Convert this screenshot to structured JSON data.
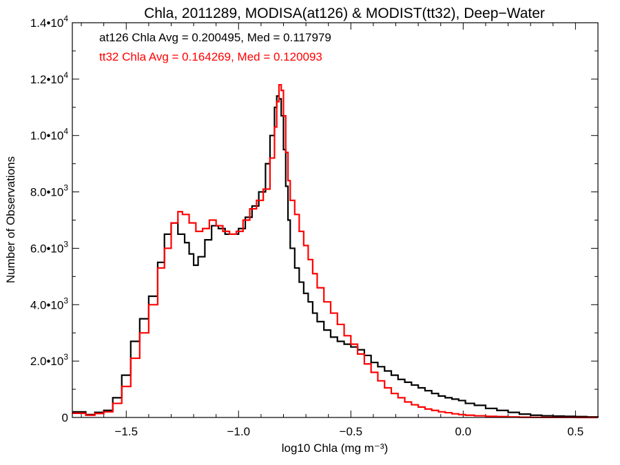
{
  "chart_data": {
    "type": "line",
    "title": "Chla, 2011289, MODISA(at126) & MODIST(tt32), Deep−Water",
    "xlabel": "log10 Chla (mg m⁻³)",
    "ylabel": "Number of Observations",
    "xlim": [
      -1.74,
      0.6
    ],
    "ylim": [
      0,
      14000
    ],
    "step": true,
    "x_ticks": [
      {
        "value": -1.5,
        "label": "−1.5"
      },
      {
        "value": -1.0,
        "label": "−1.0"
      },
      {
        "value": -0.5,
        "label": "−0.5"
      },
      {
        "value": 0.0,
        "label": "0.0"
      },
      {
        "value": 0.5,
        "label": "0.5"
      }
    ],
    "y_ticks": [
      {
        "value": 0,
        "mantissa": "0",
        "exponent": ""
      },
      {
        "value": 2000,
        "mantissa": "2.0•10",
        "exponent": "3"
      },
      {
        "value": 4000,
        "mantissa": "4.0•10",
        "exponent": "3"
      },
      {
        "value": 6000,
        "mantissa": "6.0•10",
        "exponent": "3"
      },
      {
        "value": 8000,
        "mantissa": "8.0•10",
        "exponent": "3"
      },
      {
        "value": 10000,
        "mantissa": "1.0•10",
        "exponent": "4"
      },
      {
        "value": 12000,
        "mantissa": "1.2•10",
        "exponent": "4"
      },
      {
        "value": 14000,
        "mantissa": "1.4•10",
        "exponent": "4"
      }
    ],
    "annotations": [
      {
        "text": "at126 Chla Avg = 0.200495, Med = 0.117979",
        "color": "#000000"
      },
      {
        "text": "tt32 Chla Avg = 0.164269, Med = 0.120093",
        "color": "#ff0000"
      }
    ],
    "series": [
      {
        "color": "#000000",
        "x": [
          -1.74,
          -1.68,
          -1.64,
          -1.6,
          -1.56,
          -1.52,
          -1.48,
          -1.44,
          -1.4,
          -1.36,
          -1.33,
          -1.3,
          -1.27,
          -1.24,
          -1.22,
          -1.2,
          -1.18,
          -1.15,
          -1.12,
          -1.09,
          -1.06,
          -1.03,
          -1.0,
          -0.97,
          -0.94,
          -0.91,
          -0.88,
          -0.86,
          -0.84,
          -0.83,
          -0.82,
          -0.81,
          -0.8,
          -0.79,
          -0.78,
          -0.77,
          -0.75,
          -0.73,
          -0.71,
          -0.69,
          -0.67,
          -0.65,
          -0.62,
          -0.59,
          -0.56,
          -0.53,
          -0.5,
          -0.47,
          -0.44,
          -0.41,
          -0.38,
          -0.35,
          -0.32,
          -0.29,
          -0.26,
          -0.23,
          -0.2,
          -0.17,
          -0.14,
          -0.11,
          -0.08,
          -0.05,
          -0.02,
          0.01,
          0.05,
          0.1,
          0.15,
          0.2,
          0.25,
          0.3,
          0.35,
          0.4,
          0.45,
          0.5,
          0.55,
          0.6
        ],
        "y": [
          200,
          100,
          180,
          250,
          700,
          1500,
          2700,
          3500,
          4300,
          5500,
          6500,
          6900,
          6500,
          6200,
          5800,
          5400,
          5700,
          6300,
          6800,
          6700,
          6500,
          6500,
          6700,
          7100,
          7500,
          8000,
          9000,
          10000,
          11000,
          11400,
          11300,
          10700,
          9500,
          8200,
          7000,
          6000,
          5300,
          4800,
          4400,
          4100,
          3700,
          3400,
          3100,
          2850,
          2700,
          2600,
          2500,
          2400,
          2200,
          1950,
          1800,
          1650,
          1500,
          1350,
          1250,
          1150,
          1050,
          950,
          850,
          760,
          700,
          650,
          600,
          500,
          430,
          320,
          250,
          180,
          120,
          80,
          60,
          50,
          40,
          30,
          20,
          10
        ]
      },
      {
        "color": "#ff0000",
        "x": [
          -1.74,
          -1.68,
          -1.64,
          -1.6,
          -1.56,
          -1.52,
          -1.48,
          -1.44,
          -1.4,
          -1.36,
          -1.33,
          -1.3,
          -1.27,
          -1.25,
          -1.22,
          -1.19,
          -1.16,
          -1.13,
          -1.1,
          -1.07,
          -1.04,
          -1.01,
          -0.98,
          -0.95,
          -0.92,
          -0.89,
          -0.86,
          -0.84,
          -0.83,
          -0.82,
          -0.81,
          -0.8,
          -0.79,
          -0.78,
          -0.77,
          -0.75,
          -0.73,
          -0.71,
          -0.69,
          -0.67,
          -0.65,
          -0.62,
          -0.59,
          -0.56,
          -0.53,
          -0.5,
          -0.47,
          -0.44,
          -0.41,
          -0.38,
          -0.35,
          -0.32,
          -0.29,
          -0.26,
          -0.23,
          -0.2,
          -0.17,
          -0.14,
          -0.11,
          -0.08,
          -0.05,
          -0.02,
          0.01,
          0.05,
          0.1,
          0.15,
          0.2,
          0.25,
          0.3,
          0.35,
          0.4,
          0.45,
          0.5,
          0.55,
          0.6
        ],
        "y": [
          150,
          80,
          140,
          200,
          500,
          1100,
          2100,
          3000,
          4000,
          5300,
          6000,
          6900,
          7300,
          7200,
          6900,
          6600,
          6700,
          7000,
          6800,
          6600,
          6500,
          6600,
          7000,
          7400,
          7700,
          8100,
          9200,
          10300,
          11200,
          11800,
          11600,
          10700,
          9400,
          8400,
          7700,
          7200,
          6600,
          6100,
          5600,
          5100,
          4600,
          4100,
          3700,
          3300,
          2900,
          2600,
          2250,
          1900,
          1600,
          1300,
          1050,
          850,
          700,
          550,
          450,
          370,
          300,
          250,
          200,
          170,
          130,
          100,
          80,
          60,
          40,
          30,
          20,
          10,
          5,
          3,
          2,
          1,
          0,
          0,
          0
        ]
      }
    ]
  }
}
